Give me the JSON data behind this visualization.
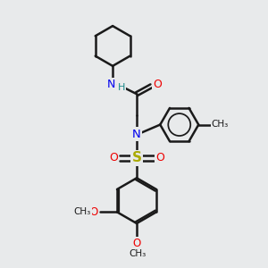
{
  "bg_color": "#e8eaeb",
  "bond_color": "#1a1a1a",
  "N_color": "#0000ee",
  "O_color": "#ee0000",
  "S_color": "#aaaa00",
  "figsize": [
    3.0,
    3.0
  ],
  "dpi": 100,
  "xlim": [
    0,
    10
  ],
  "ylim": [
    0,
    10
  ]
}
